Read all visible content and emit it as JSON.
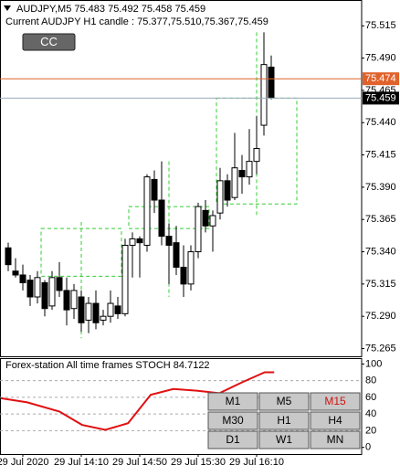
{
  "chart_data": [
    {
      "type": "candlestick",
      "title": "AUDJPY,M5  75.483 75.492 75.458 75.459",
      "subtitle": "Current AUDJPY H1 candle : 75.377,75.510,75.367,75.459",
      "categories": [
        null,
        null,
        "29 Jul 2020",
        null,
        null,
        null,
        null,
        null,
        null,
        null,
        "29 Jul 14:10",
        null,
        null,
        null,
        null,
        null,
        null,
        null,
        "29 Jul 14:50",
        null,
        null,
        null,
        null,
        null,
        null,
        null,
        "29 Jul 15:30",
        null,
        null,
        null,
        null,
        null,
        null,
        null,
        "29 Jul 16:10",
        null,
        null
      ],
      "open": [
        75.343,
        75.325,
        75.322,
        75.318,
        75.305,
        75.316,
        75.298,
        75.32,
        75.31,
        75.296,
        75.305,
        75.287,
        75.3,
        75.287,
        75.29,
        75.298,
        75.292,
        75.345,
        75.35,
        75.345,
        75.396,
        75.38,
        75.352,
        75.347,
        75.328,
        75.315,
        75.34,
        75.372,
        75.36,
        75.37,
        75.395,
        75.382,
        75.403,
        75.398,
        75.41,
        75.438,
        75.483
      ],
      "high": [
        75.347,
        75.335,
        75.33,
        75.322,
        75.325,
        75.318,
        75.325,
        75.332,
        75.32,
        75.315,
        75.31,
        75.305,
        75.31,
        75.295,
        75.31,
        75.305,
        75.35,
        75.355,
        75.352,
        75.4,
        75.403,
        75.41,
        75.362,
        75.36,
        75.345,
        75.345,
        75.378,
        75.38,
        75.372,
        75.405,
        75.4,
        75.432,
        75.415,
        75.435,
        75.445,
        75.51,
        75.492
      ],
      "low": [
        75.325,
        75.32,
        75.31,
        75.298,
        75.3,
        75.29,
        75.295,
        75.305,
        75.283,
        75.288,
        75.278,
        75.277,
        75.28,
        75.283,
        75.285,
        75.288,
        75.29,
        75.32,
        75.32,
        75.34,
        75.37,
        75.345,
        75.315,
        75.322,
        75.305,
        75.31,
        75.335,
        75.355,
        75.34,
        75.365,
        75.375,
        75.38,
        75.385,
        75.392,
        75.4,
        75.43,
        75.458
      ],
      "close": [
        75.33,
        75.322,
        75.316,
        75.305,
        75.32,
        75.296,
        75.32,
        75.31,
        75.295,
        75.31,
        75.285,
        75.3,
        75.285,
        75.29,
        75.3,
        75.292,
        75.345,
        75.35,
        75.347,
        75.398,
        75.38,
        75.352,
        75.345,
        75.328,
        75.315,
        75.34,
        75.375,
        75.36,
        75.368,
        75.395,
        75.38,
        75.405,
        75.398,
        75.41,
        75.42,
        75.485,
        75.459
      ],
      "up_color": "#ffffff",
      "down_color": "#000000",
      "h1_candles": [
        {
          "open": 75.321,
          "high": 75.363,
          "low": 75.273,
          "close": 75.358
        },
        {
          "open": 75.358,
          "high": 75.41,
          "low": 75.305,
          "close": 75.375
        },
        {
          "open": 75.377,
          "high": 75.51,
          "low": 75.367,
          "close": 75.459
        }
      ],
      "h1_color": "#33cc33",
      "ask_line": {
        "value": 75.474,
        "color": "#e0622a"
      },
      "bid_line": {
        "value": 75.459,
        "color": "#000000"
      },
      "ylim": [
        75.259,
        75.535
      ],
      "yticks": [
        75.515,
        {
          "value": 75.49,
          "label": "75.490"
        },
        75.465,
        {
          "value": 75.44,
          "label": "75.440"
        },
        75.415,
        {
          "value": 75.39,
          "label": "75.390"
        },
        75.365,
        {
          "value": 75.34,
          "label": "75.340"
        },
        75.315,
        {
          "value": 75.29,
          "label": "75.290"
        },
        75.265
      ]
    },
    {
      "type": "line",
      "title": "Forex-station  All time frames STOCH 84.7122",
      "x": [
        -1,
        2.6,
        7,
        10.1,
        13.3,
        16.4,
        19.5,
        22.6,
        25.8,
        28.9,
        32,
        35.1,
        36.4
      ],
      "values": [
        59,
        54,
        43,
        27,
        21,
        29,
        63,
        70,
        68,
        65,
        78,
        90,
        90
      ],
      "color": "#e01010",
      "xlim": [
        -1.125,
        48.375
      ],
      "ylim": [
        -8,
        107
      ],
      "yticks": [
        100,
        80,
        60,
        40,
        20,
        0
      ]
    }
  ],
  "cc_button": "CC",
  "buttons": [
    "M1",
    "M5",
    "M15",
    "M30",
    "H1",
    "H4",
    "D1",
    "W1",
    "MN"
  ],
  "active_button_index": 2
}
